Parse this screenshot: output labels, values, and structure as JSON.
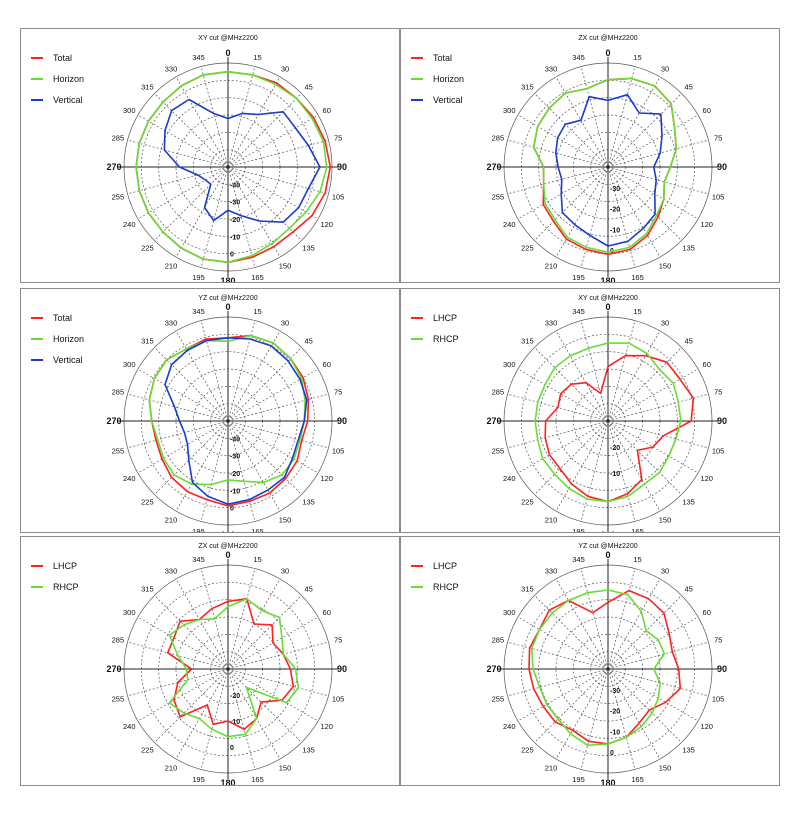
{
  "angle_labels": [
    "0",
    "15",
    "30",
    "45",
    "60",
    "75",
    "90",
    "105",
    "120",
    "135",
    "150",
    "165",
    "180",
    "195",
    "210",
    "225",
    "240",
    "255",
    "270",
    "285",
    "300",
    "315",
    "330",
    "345"
  ],
  "chart_data": [
    {
      "type": "polar",
      "title": "XY cut @MHz2200",
      "radial_ticks": [
        "-40",
        "-30",
        "-20",
        "-10",
        "0"
      ],
      "rmin": -50,
      "rmax": 10,
      "series": [
        {
          "name": "Total",
          "color": "#ff2020",
          "values": [
            5,
            5,
            6,
            6,
            7,
            8,
            9,
            8,
            6,
            3,
            3,
            4,
            5,
            5,
            4,
            3,
            3,
            3,
            3,
            3,
            3,
            3,
            4,
            5
          ]
        },
        {
          "name": "Horizon",
          "color": "#66dd33",
          "values": [
            5,
            5,
            5,
            6,
            6,
            7,
            7,
            5,
            2,
            0,
            1,
            3,
            5,
            5,
            4,
            3,
            3,
            3,
            3,
            3,
            3,
            3,
            4,
            5
          ]
        },
        {
          "name": "Vertical",
          "color": "#1a3ccc",
          "values": [
            -22,
            -18,
            -15,
            -5,
            -5,
            -2,
            3,
            -2,
            -3,
            -5,
            -14,
            -21,
            -25,
            -18,
            -23,
            -36,
            -35,
            -32,
            -22,
            -12,
            -8,
            -4,
            -5,
            -18
          ]
        }
      ]
    },
    {
      "type": "polar",
      "title": "ZX cut @MHz2200",
      "radial_ticks": [
        "-30",
        "-20",
        "-10",
        "0"
      ],
      "rmin": -40,
      "rmax": 10,
      "series": [
        {
          "name": "Total",
          "color": "#ff2020",
          "values": [
            2,
            4,
            5,
            3,
            -3,
            -6,
            -10,
            -12,
            -9,
            -6,
            -2,
            1,
            2,
            1,
            0,
            -3,
            -4,
            -8,
            -9,
            -3,
            -1,
            0,
            1,
            -1
          ]
        },
        {
          "name": "Horizon",
          "color": "#66dd33",
          "values": [
            2,
            4,
            5,
            3,
            -3,
            -6,
            -10,
            -12,
            -9,
            -7,
            -3,
            0,
            1,
            0,
            -1,
            -4,
            -5,
            -8,
            -9,
            -3,
            -1,
            0,
            1,
            -1
          ]
        },
        {
          "name": "Vertical",
          "color": "#1a3ccc",
          "values": [
            -8,
            -4,
            -10,
            -4,
            -10,
            -14,
            -18,
            -16,
            -14,
            -8,
            -6,
            -3,
            -2,
            -6,
            -8,
            -9,
            -14,
            -17,
            -16,
            -14,
            -12,
            -11,
            -14,
            -5
          ]
        }
      ]
    },
    {
      "type": "polar",
      "title": "YZ cut @MHz2200",
      "radial_ticks": [
        "-40",
        "-30",
        "-20",
        "-10",
        "0"
      ],
      "rmin": -50,
      "rmax": 10,
      "series": [
        {
          "name": "Total",
          "color": "#ff2020",
          "values": [
            -2,
            1,
            2,
            1,
            0,
            -2,
            -4,
            -6,
            -4,
            -3,
            -2,
            -2,
            -1,
            -3,
            -3,
            -4,
            -6,
            -7,
            -6,
            -3,
            -1,
            0,
            -2,
            -1
          ]
        },
        {
          "name": "Horizon",
          "color": "#66dd33",
          "values": [
            -4,
            1,
            2,
            1,
            -1,
            -4,
            -6,
            -7,
            -6,
            -6,
            -9,
            -14,
            -16,
            -12,
            -8,
            -6,
            -7,
            -8,
            -6,
            -3,
            -1,
            0,
            -2,
            -2
          ]
        },
        {
          "name": "Vertical",
          "color": "#1a3ccc",
          "values": [
            -2,
            -1,
            0,
            -1,
            -2,
            -3,
            -6,
            -8,
            -7,
            -4,
            -4,
            -3,
            -2,
            -5,
            -9,
            -18,
            -23,
            -24,
            -22,
            -18,
            -8,
            -4,
            -3,
            -2
          ]
        }
      ]
    },
    {
      "type": "polar",
      "title": "XY cut @MHz2200",
      "radial_ticks": [
        "-20",
        "-10"
      ],
      "rmin": -30,
      "rmax": 10,
      "series": [
        {
          "name": "LHCP",
          "color": "#ff2020",
          "values": [
            -9,
            -4,
            -1,
            2,
            2,
            4,
            2,
            -8,
            -10,
            -14,
            -4,
            -1,
            1,
            0,
            -2,
            -4,
            -4,
            -5,
            -6,
            -10,
            -9,
            -10,
            -13,
            -19
          ]
        },
        {
          "name": "RHCP",
          "color": "#66dd33",
          "values": [
            0,
            1,
            0,
            -2,
            -1,
            -2,
            -2,
            -3,
            -3,
            -2,
            -2,
            0,
            1,
            1,
            0,
            -1,
            -1,
            -2,
            -2,
            -2,
            -2,
            -1,
            -1,
            -1
          ]
        }
      ]
    },
    {
      "type": "polar",
      "title": "ZX cut @MHz2200",
      "radial_ticks": [
        "-20",
        "-10",
        "0"
      ],
      "rmin": -30,
      "rmax": 10,
      "series": [
        {
          "name": "LHCP",
          "color": "#ff2020",
          "values": [
            -4,
            -2,
            -10,
            -6,
            -10,
            -8,
            -6,
            -4,
            -6,
            -12,
            -8,
            -6,
            -10,
            -8,
            -14,
            -4,
            -6,
            -10,
            -16,
            -6,
            -6,
            -4,
            -8,
            -6
          ]
        },
        {
          "name": "RHCP",
          "color": "#66dd33",
          "values": [
            -6,
            -2,
            -4,
            -2,
            -6,
            -8,
            -4,
            -2,
            -4,
            -20,
            -8,
            -4,
            -4,
            -6,
            -8,
            -6,
            -4,
            -14,
            -14,
            -10,
            -4,
            -6,
            -8,
            -10
          ]
        }
      ]
    },
    {
      "type": "polar",
      "title": "YZ cut @MHz2200",
      "radial_ticks": [
        "-30",
        "-20",
        "-10",
        "0"
      ],
      "rmin": -40,
      "rmax": 10,
      "series": [
        {
          "name": "LHCP",
          "color": "#ff2020",
          "values": [
            -8,
            -1,
            -1,
            -2,
            -6,
            -8,
            -6,
            -4,
            -8,
            -12,
            -10,
            -6,
            -4,
            -4,
            -6,
            -4,
            -4,
            -3,
            -2,
            -1,
            -2,
            0,
            -2,
            -12
          ]
        },
        {
          "name": "RHCP",
          "color": "#66dd33",
          "values": [
            -2,
            -3,
            -8,
            -14,
            -12,
            -12,
            -18,
            -14,
            -12,
            -10,
            -8,
            -6,
            -4,
            -2,
            -4,
            -6,
            -6,
            -6,
            -4,
            -2,
            -2,
            -2,
            -2,
            -2
          ]
        }
      ]
    }
  ]
}
